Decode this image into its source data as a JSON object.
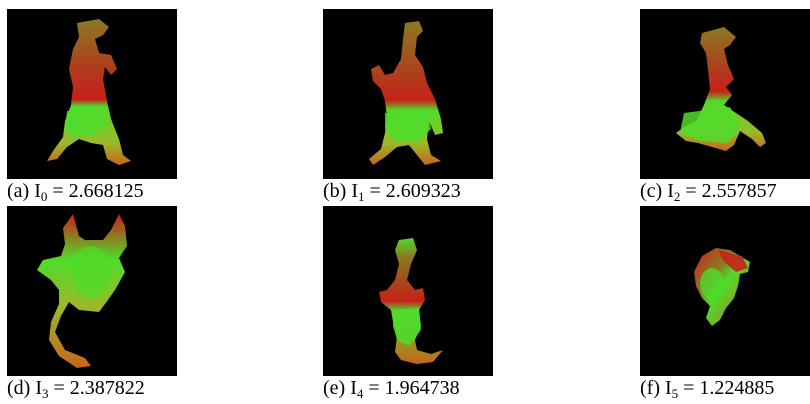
{
  "figure": {
    "panels": [
      {
        "id": "a",
        "label": "(a) I",
        "sub": "0",
        "rest": " = 2.668125",
        "value": 2.668125,
        "pose": "trex-standing"
      },
      {
        "id": "b",
        "label": "(b) I",
        "sub": "1",
        "rest": " = 2.609323",
        "value": 2.609323,
        "pose": "trex-arm-raised"
      },
      {
        "id": "c",
        "label": "(c) I",
        "sub": "2",
        "rest": " = 2.557857",
        "value": 2.557857,
        "pose": "trex-side"
      },
      {
        "id": "d",
        "label": "(d) I",
        "sub": "3",
        "rest": " = 2.387822",
        "value": 2.387822,
        "pose": "frog-top-view"
      },
      {
        "id": "e",
        "label": "(e) I",
        "sub": "4",
        "rest": " = 1.964738",
        "value": 1.964738,
        "pose": "trex-back-view"
      },
      {
        "id": "f",
        "label": "(f) I",
        "sub": "5",
        "rest": " = 1.224885",
        "value": 1.224885,
        "pose": "trex-small-curled"
      }
    ],
    "colors": {
      "background": "#000000",
      "red": "#c8201a",
      "green": "#4fdc2a",
      "olive": "#8a7a22",
      "orange": "#c8641e"
    }
  }
}
